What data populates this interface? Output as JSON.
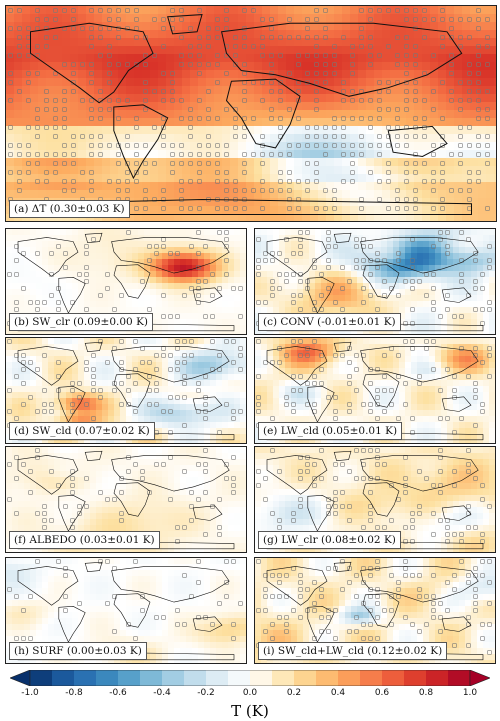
{
  "panels": [
    {
      "id": "a",
      "label": "(a) ΔT (0.30±0.03 K)",
      "base": 0.55,
      "var": 0.35,
      "hatch": 0.55,
      "seed": 3
    },
    {
      "id": "b",
      "label": "(b) SW_clr (0.09±0.00 K)",
      "base": 0.02,
      "var": 0.1,
      "hatch": 0.15,
      "seed": 7,
      "hot": [
        0.74,
        0.35
      ]
    },
    {
      "id": "c",
      "label": "(c) CONV (-0.01±0.01 K)",
      "base": 0.0,
      "var": 0.45,
      "hatch": 0.3,
      "seed": 11,
      "cold": [
        0.62,
        0.3
      ]
    },
    {
      "id": "d",
      "label": "(d) SW_cld (0.07±0.02 K)",
      "base": 0.05,
      "var": 0.55,
      "hatch": 0.25,
      "seed": 13
    },
    {
      "id": "e",
      "label": "(e) LW_cld (0.05±0.01 K)",
      "base": 0.05,
      "var": 0.5,
      "hatch": 0.25,
      "seed": 17
    },
    {
      "id": "f",
      "label": "(f) ALBEDO (0.03±0.01 K)",
      "base": 0.03,
      "var": 0.15,
      "hatch": 0.15,
      "seed": 19
    },
    {
      "id": "g",
      "label": "(g) LW_clr (0.08±0.02 K)",
      "base": 0.1,
      "var": 0.3,
      "hatch": 0.25,
      "seed": 23
    },
    {
      "id": "h",
      "label": "(h) SURF (0.00±0.03 K)",
      "base": 0.0,
      "var": 0.18,
      "hatch": 0.1,
      "seed": 29
    },
    {
      "id": "i",
      "label": "(i) SW_cld+LW_cld (0.12±0.02 K)",
      "base": 0.1,
      "var": 0.5,
      "hatch": 0.3,
      "seed": 31
    }
  ],
  "colorbar": {
    "ticks": [
      "-1.0",
      "-0.8",
      "-0.6",
      "-0.4",
      "-0.2",
      "0.0",
      "0.2",
      "0.4",
      "0.6",
      "0.8",
      "1.0"
    ],
    "unit": "T (K)",
    "range": [
      -1.0,
      1.0
    ],
    "colors": [
      "#08306b",
      "#2166ac",
      "#4393c3",
      "#92c5de",
      "#d1e5f0",
      "#ffffff",
      "#fde0a0",
      "#fdae61",
      "#f46d43",
      "#d73027",
      "#a50026"
    ]
  }
}
